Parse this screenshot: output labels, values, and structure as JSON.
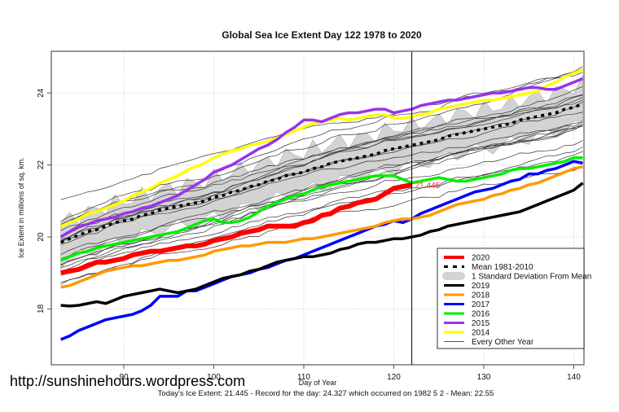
{
  "chart_data": {
    "type": "line",
    "title": "Global Sea Ice Extent Day 122 1978 to 2020",
    "xlabel": "Day of Year",
    "ylabel": "Ice Extent in millions of sq. km.",
    "xlim": [
      82,
      142
    ],
    "ylim": [
      16.7,
      25.2
    ],
    "xticks": [
      90,
      100,
      110,
      120,
      130,
      140
    ],
    "yticks": [
      18,
      20,
      22,
      24
    ],
    "grid": true,
    "current_day": 122,
    "current_value_label": "21.445",
    "legend_position": "bottom-right",
    "x": [
      83,
      84,
      85,
      86,
      87,
      88,
      89,
      90,
      91,
      92,
      93,
      94,
      95,
      96,
      97,
      98,
      99,
      100,
      101,
      102,
      103,
      104,
      105,
      106,
      107,
      108,
      109,
      110,
      111,
      112,
      113,
      114,
      115,
      116,
      117,
      118,
      119,
      120,
      121,
      122,
      123,
      124,
      125,
      126,
      127,
      128,
      129,
      130,
      131,
      132,
      133,
      134,
      135,
      136,
      137,
      138,
      139,
      140,
      141
    ],
    "series": [
      {
        "name": "2020",
        "color": "#ff0000",
        "width": 6,
        "values": [
          19.0,
          19.05,
          19.1,
          19.2,
          19.3,
          19.3,
          19.35,
          19.4,
          19.5,
          19.55,
          19.6,
          19.6,
          19.65,
          19.7,
          19.75,
          19.75,
          19.8,
          19.9,
          19.95,
          20.0,
          20.1,
          20.15,
          20.2,
          20.3,
          20.3,
          20.3,
          20.3,
          20.4,
          20.45,
          20.6,
          20.65,
          20.8,
          20.85,
          20.95,
          21.0,
          21.05,
          21.2,
          21.35,
          21.4,
          21.445
        ]
      },
      {
        "name": "2019",
        "color": "#000000",
        "width": 3.5,
        "values": [
          18.1,
          18.08,
          18.1,
          18.15,
          18.2,
          18.15,
          18.25,
          18.35,
          18.4,
          18.45,
          18.5,
          18.55,
          18.5,
          18.45,
          18.5,
          18.55,
          18.65,
          18.75,
          18.85,
          18.9,
          18.95,
          19.05,
          19.1,
          19.2,
          19.3,
          19.35,
          19.4,
          19.45,
          19.45,
          19.5,
          19.55,
          19.65,
          19.7,
          19.8,
          19.85,
          19.85,
          19.9,
          19.95,
          19.95,
          20.0,
          20.05,
          20.15,
          20.2,
          20.3,
          20.35,
          20.4,
          20.45,
          20.5,
          20.55,
          20.6,
          20.65,
          20.7,
          20.8,
          20.9,
          21.0,
          21.1,
          21.2,
          21.3,
          21.5
        ]
      },
      {
        "name": "2018",
        "color": "#ff9900",
        "width": 3.5,
        "values": [
          18.6,
          18.65,
          18.75,
          18.85,
          18.95,
          19.05,
          19.1,
          19.15,
          19.2,
          19.2,
          19.25,
          19.3,
          19.35,
          19.35,
          19.4,
          19.45,
          19.5,
          19.6,
          19.65,
          19.7,
          19.75,
          19.75,
          19.8,
          19.85,
          19.85,
          19.85,
          19.9,
          19.95,
          19.95,
          20.0,
          20.05,
          20.1,
          20.15,
          20.2,
          20.25,
          20.3,
          20.4,
          20.45,
          20.5,
          20.5,
          20.55,
          20.6,
          20.7,
          20.8,
          20.9,
          20.95,
          21.0,
          21.05,
          21.15,
          21.2,
          21.3,
          21.35,
          21.45,
          21.5,
          21.6,
          21.7,
          21.8,
          21.9,
          21.95
        ]
      },
      {
        "name": "2017",
        "color": "#0000ff",
        "width": 3.5,
        "values": [
          17.15,
          17.25,
          17.4,
          17.5,
          17.6,
          17.7,
          17.75,
          17.8,
          17.85,
          17.95,
          18.1,
          18.35,
          18.35,
          18.35,
          18.5,
          18.5,
          18.6,
          18.7,
          18.8,
          18.9,
          18.95,
          19.0,
          19.1,
          19.15,
          19.25,
          19.35,
          19.4,
          19.5,
          19.6,
          19.7,
          19.8,
          19.9,
          20.0,
          20.1,
          20.2,
          20.3,
          20.35,
          20.45,
          20.4,
          20.5,
          20.65,
          20.75,
          20.85,
          20.95,
          21.05,
          21.15,
          21.25,
          21.3,
          21.35,
          21.45,
          21.55,
          21.6,
          21.75,
          21.75,
          21.85,
          21.9,
          22.0,
          22.1,
          22.05
        ]
      },
      {
        "name": "2016",
        "color": "#00ee00",
        "width": 3.5,
        "values": [
          19.35,
          19.45,
          19.55,
          19.6,
          19.7,
          19.75,
          19.8,
          19.85,
          19.9,
          19.95,
          20.0,
          20.05,
          20.1,
          20.15,
          20.25,
          20.35,
          20.45,
          20.5,
          20.4,
          20.4,
          20.45,
          20.55,
          20.7,
          20.85,
          20.95,
          21.05,
          21.15,
          21.2,
          21.3,
          21.4,
          21.45,
          21.5,
          21.55,
          21.6,
          21.65,
          21.7,
          21.7,
          21.7,
          21.6,
          21.5,
          21.55,
          21.6,
          21.65,
          21.6,
          21.55,
          21.55,
          21.6,
          21.65,
          21.7,
          21.75,
          21.85,
          21.9,
          21.9,
          21.95,
          22.0,
          22.05,
          22.1,
          22.2,
          22.2
        ]
      },
      {
        "name": "2015",
        "color": "#9933ee",
        "width": 3.5,
        "values": [
          20.0,
          20.15,
          20.3,
          20.35,
          20.45,
          20.5,
          20.55,
          20.65,
          20.7,
          20.8,
          20.85,
          20.95,
          21.05,
          21.15,
          21.3,
          21.45,
          21.6,
          21.8,
          21.9,
          22.0,
          22.15,
          22.3,
          22.45,
          22.55,
          22.7,
          22.9,
          23.05,
          23.25,
          23.25,
          23.2,
          23.3,
          23.4,
          23.45,
          23.45,
          23.5,
          23.55,
          23.55,
          23.45,
          23.5,
          23.55,
          23.65,
          23.7,
          23.75,
          23.8,
          23.8,
          23.85,
          23.9,
          23.95,
          24.0,
          24.0,
          24.05,
          24.1,
          24.15,
          24.15,
          24.1,
          24.1,
          24.2,
          24.3,
          24.4
        ]
      },
      {
        "name": "2014",
        "color": "#ffff00",
        "width": 3.5,
        "values": [
          20.3,
          20.4,
          20.5,
          20.65,
          20.7,
          20.8,
          20.9,
          21.0,
          21.15,
          21.25,
          21.35,
          21.5,
          21.6,
          21.7,
          21.85,
          21.95,
          22.05,
          22.2,
          22.3,
          22.4,
          22.45,
          22.55,
          22.6,
          22.65,
          22.75,
          22.85,
          22.95,
          23.05,
          23.15,
          23.2,
          23.25,
          23.3,
          23.25,
          23.3,
          23.35,
          23.4,
          23.4,
          23.3,
          23.3,
          23.35,
          23.4,
          23.45,
          23.55,
          23.6,
          23.65,
          23.7,
          23.75,
          23.8,
          23.8,
          23.85,
          23.9,
          23.95,
          24.0,
          24.05,
          24.2,
          24.3,
          24.45,
          24.55,
          24.65
        ]
      },
      {
        "name": "Mean 1981-2010",
        "color": "#000000",
        "width": 3.5,
        "dashed": true,
        "values": [
          19.85,
          19.95,
          20.05,
          20.15,
          20.2,
          20.3,
          20.4,
          20.45,
          20.5,
          20.6,
          20.65,
          20.75,
          20.8,
          20.85,
          20.9,
          20.95,
          21.0,
          21.1,
          21.15,
          21.25,
          21.3,
          21.4,
          21.45,
          21.55,
          21.6,
          21.7,
          21.75,
          21.8,
          21.9,
          21.95,
          22.05,
          22.1,
          22.15,
          22.2,
          22.25,
          22.3,
          22.4,
          22.45,
          22.5,
          22.55,
          22.6,
          22.65,
          22.7,
          22.8,
          22.85,
          22.9,
          22.95,
          23.0,
          23.05,
          23.1,
          23.15,
          23.25,
          23.3,
          23.35,
          23.4,
          23.45,
          23.55,
          23.6,
          23.7
        ]
      }
    ],
    "std_band_halfwidth": 0.55,
    "every_other_year_count": 20,
    "legend": [
      "2020",
      "Mean 1981-2010",
      "1 Standard Deviation From Mean",
      "2019",
      "2018",
      "2017",
      "2016",
      "2015",
      "2014",
      "Every Other Year"
    ],
    "legend_colors": [
      "#ff0000",
      "#000000",
      "#d3d3d3",
      "#000000",
      "#ff9900",
      "#0000ff",
      "#00ee00",
      "#9933ee",
      "#ffff00",
      "#555555"
    ],
    "footer": "Today's Ice Extent: 21.445  - Record for the day: 24.327 which occurred on 1982 5 2  - Mean: 22.55"
  },
  "watermark": "http://sunshinehours.wordpress.com"
}
